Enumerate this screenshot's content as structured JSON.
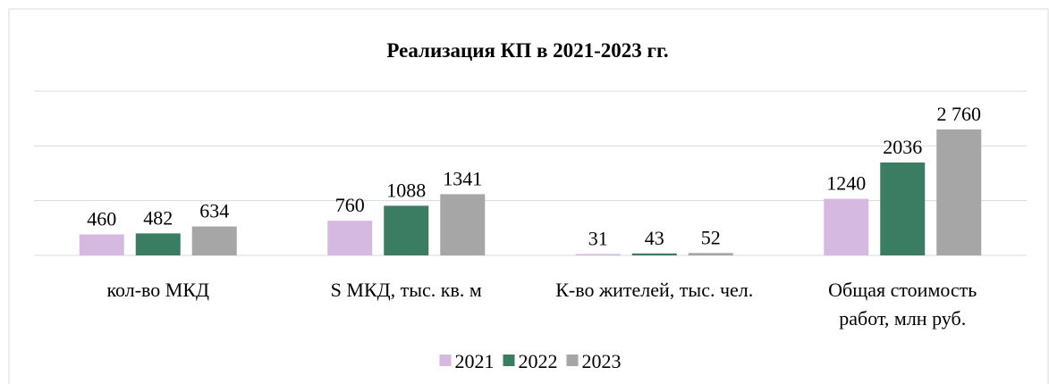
{
  "chart_data": {
    "type": "bar",
    "title": "Реализация КП в 2021-2023 гг.",
    "categories": [
      "кол-во МКД",
      "S МКД, тыс. кв. м",
      "К-во жителей, тыс. чел.",
      "Общая стоимость работ, млн руб."
    ],
    "series": [
      {
        "name": "2021",
        "color": "#d5b9e1",
        "values": [
          460,
          760,
          31,
          1240
        ]
      },
      {
        "name": "2022",
        "color": "#3a7d62",
        "values": [
          482,
          1088,
          43,
          2036
        ]
      },
      {
        "name": "2023",
        "color": "#a6a6a6",
        "values": [
          634,
          1341,
          52,
          2760
        ],
        "value_labels": [
          "634",
          "1341",
          "52",
          "2 760"
        ]
      }
    ],
    "ylim": [
      0,
      3600
    ],
    "yticks": [
      0,
      1200,
      2400,
      3600
    ],
    "grid": true,
    "legend": "bottom"
  }
}
